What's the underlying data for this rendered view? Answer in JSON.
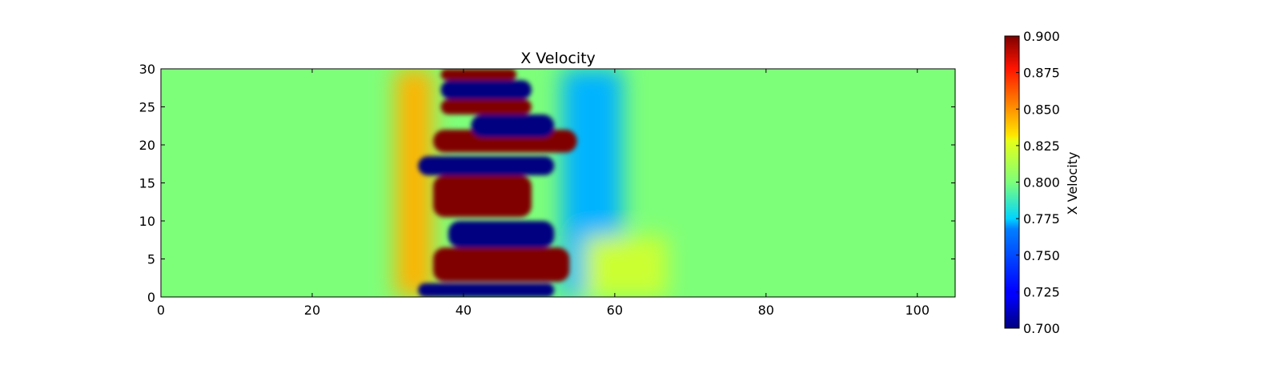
{
  "chart_data": [
    {
      "type": "heatmap",
      "title": "X Velocity",
      "xlim": [
        0,
        105
      ],
      "ylim": [
        0,
        30
      ],
      "xticks": [
        0,
        20,
        40,
        60,
        80,
        100
      ],
      "xtick_labels": [
        "0",
        "20",
        "40",
        "60",
        "80",
        "100"
      ],
      "yticks": [
        0,
        5,
        10,
        15,
        20,
        25,
        30
      ],
      "ytick_labels": [
        "0",
        "5",
        "10",
        "15",
        "20",
        "25",
        "30"
      ],
      "colormap": "jet",
      "value_range": [
        0.7,
        0.9
      ],
      "background_value": 0.8,
      "wake_region_x": [
        34,
        55
      ],
      "bands": [
        {
          "value": 0.7,
          "x": [
            34,
            52
          ],
          "y": [
            0,
            1.8
          ]
        },
        {
          "value": 0.9,
          "x": [
            36,
            54
          ],
          "y": [
            2,
            6.5
          ]
        },
        {
          "value": 0.7,
          "x": [
            38,
            52
          ],
          "y": [
            6.5,
            10
          ]
        },
        {
          "value": 0.9,
          "x": [
            36,
            49
          ],
          "y": [
            10.5,
            16
          ]
        },
        {
          "value": 0.7,
          "x": [
            34,
            52
          ],
          "y": [
            16,
            18.5
          ]
        },
        {
          "value": 0.9,
          "x": [
            36,
            55
          ],
          "y": [
            19,
            22
          ]
        },
        {
          "value": 0.7,
          "x": [
            41,
            52
          ],
          "y": [
            21,
            24
          ]
        },
        {
          "value": 0.9,
          "x": [
            37,
            49
          ],
          "y": [
            24,
            26
          ]
        },
        {
          "value": 0.7,
          "x": [
            37,
            49
          ],
          "y": [
            26,
            28.5
          ]
        },
        {
          "value": 0.9,
          "x": [
            37,
            47
          ],
          "y": [
            28.5,
            30
          ]
        }
      ]
    },
    {
      "type": "colorbar",
      "label": "X Velocity",
      "range": [
        0.7,
        0.9
      ],
      "ticks": [
        0.7,
        0.725,
        0.75,
        0.775,
        0.8,
        0.825,
        0.85,
        0.875,
        0.9
      ],
      "tick_labels": [
        "0.700",
        "0.725",
        "0.750",
        "0.775",
        "0.800",
        "0.825",
        "0.850",
        "0.875",
        "0.900"
      ]
    }
  ]
}
